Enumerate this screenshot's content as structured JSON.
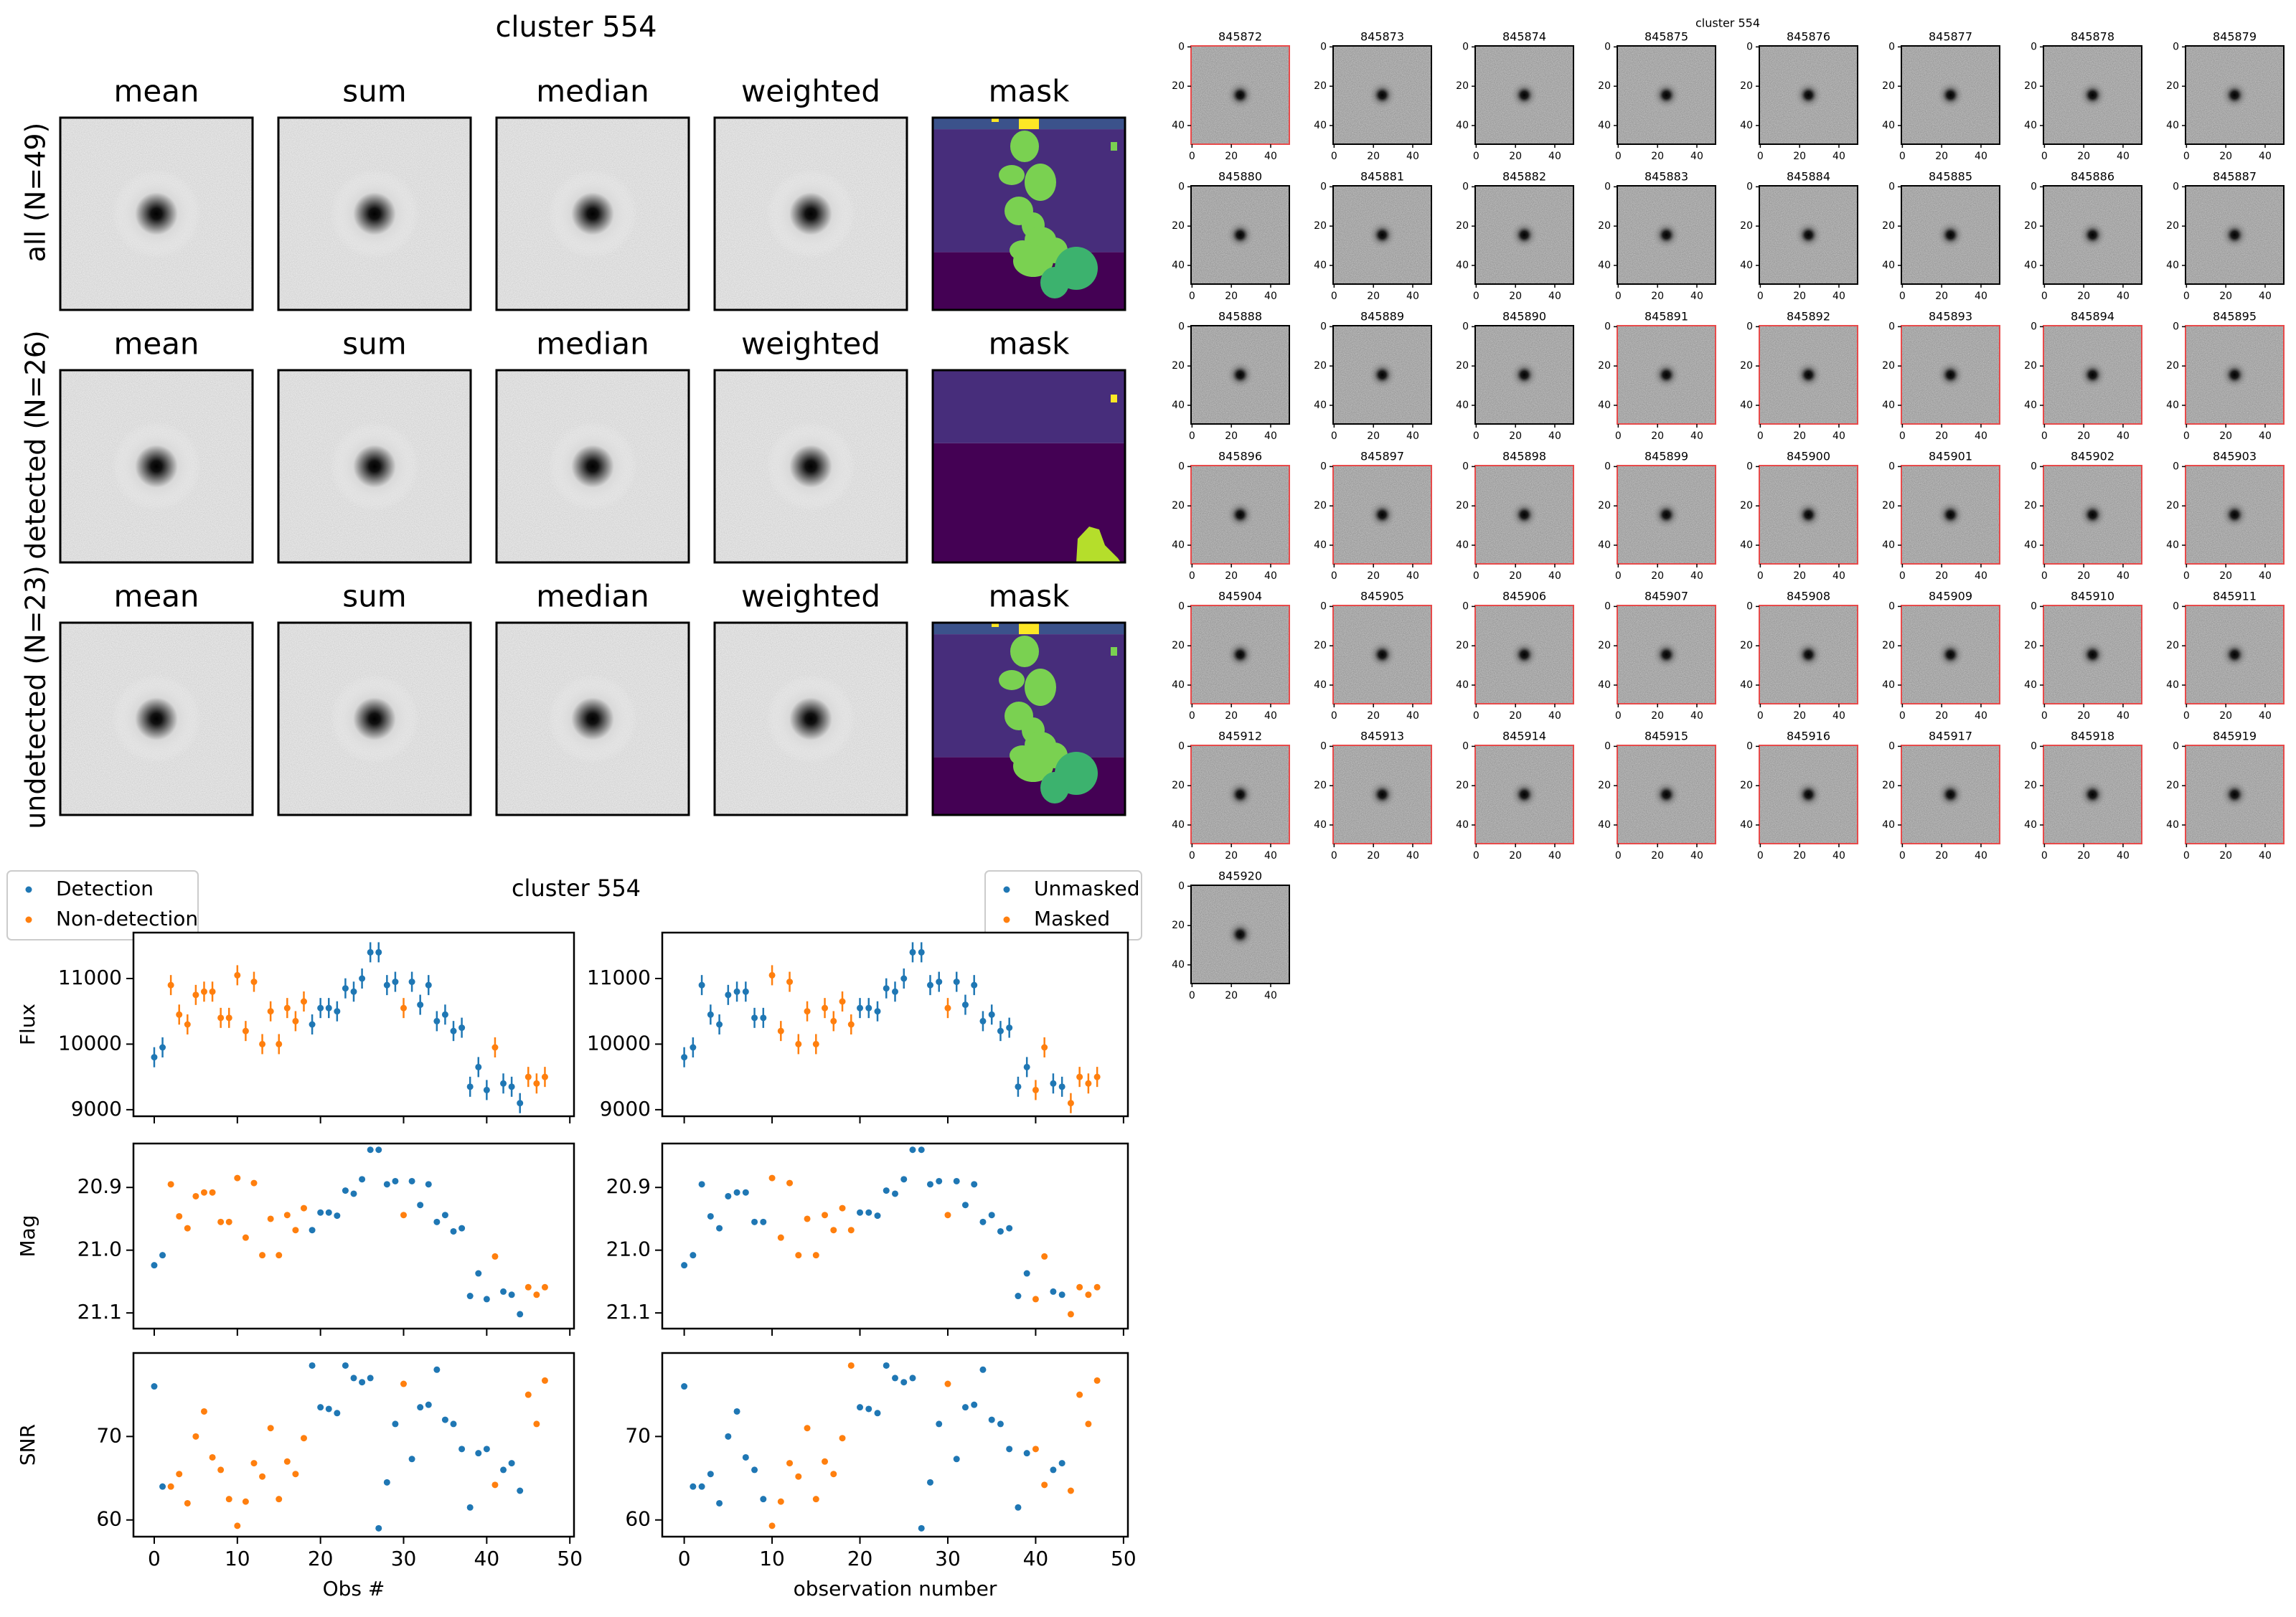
{
  "title": "cluster 554",
  "stack_panel": {
    "title": "cluster 554",
    "column_titles": [
      "mean",
      "sum",
      "median",
      "weighted",
      "mask"
    ],
    "row_labels": [
      "all (N=49)",
      "detected (N=26)",
      "undetected (N=23)"
    ],
    "mask_colors": {
      "dark": "#440154",
      "mid": "#472d7b",
      "blue": "#3b528b",
      "green": "#7ad151",
      "teal": "#3cb26e",
      "yellow": "#fde725",
      "lime": "#b5de2b"
    }
  },
  "lightcurve_panel": {
    "title": "cluster 554",
    "legend_left": [
      "Detection",
      "Non-detection"
    ],
    "legend_right": [
      "Unmasked",
      "Masked"
    ],
    "xlabel_left": "Obs #",
    "xlabel_right": "observation number",
    "xticks": [
      "0",
      "10",
      "20",
      "30",
      "40",
      "50"
    ],
    "flux_ylabel": "Flux",
    "flux_yticks": [
      "9000",
      "10000",
      "11000"
    ],
    "mag_ylabel": "Mag",
    "mag_yticks": [
      "20.9",
      "21.0",
      "21.1"
    ],
    "snr_ylabel": "SNR",
    "snr_yticks": [
      "60",
      "70"
    ],
    "colors": {
      "blue": "#1f77b4",
      "orange": "#ff7f0e"
    }
  },
  "cutout_panel": {
    "title": "cluster 554",
    "ids": [
      "845872",
      "845873",
      "845874",
      "845875",
      "845876",
      "845877",
      "845878",
      "845879",
      "845880",
      "845881",
      "845882",
      "845883",
      "845884",
      "845885",
      "845886",
      "845887",
      "845888",
      "845889",
      "845890",
      "845891",
      "845892",
      "845893",
      "845894",
      "845895",
      "845896",
      "845897",
      "845898",
      "845899",
      "845900",
      "845901",
      "845902",
      "845903",
      "845904",
      "845905",
      "845906",
      "845907",
      "845908",
      "845909",
      "845910",
      "845911",
      "845912",
      "845913",
      "845914",
      "845915",
      "845916",
      "845917",
      "845918",
      "845919",
      "845920"
    ],
    "xticks": [
      "0",
      "20",
      "40"
    ],
    "yticks": [
      "0",
      "20",
      "40"
    ],
    "red_border_indices": [
      0,
      19,
      20,
      21,
      22,
      23,
      24,
      25,
      26,
      27,
      28,
      29,
      30,
      31,
      32,
      33,
      34,
      35,
      36,
      37,
      38,
      39,
      40,
      41,
      42,
      43,
      44,
      45,
      46,
      47
    ]
  },
  "chart_data": [
    {
      "type": "scatter",
      "title": "cluster 554",
      "xlabel": "",
      "ylabel": "Flux",
      "x": [
        0,
        1,
        2,
        3,
        4,
        5,
        6,
        7,
        8,
        9,
        10,
        11,
        12,
        13,
        14,
        15,
        16,
        17,
        18,
        19,
        20,
        21,
        22,
        23,
        24,
        25,
        26,
        27,
        28,
        29,
        30,
        31,
        32,
        33,
        34,
        35,
        36,
        37,
        38,
        39,
        40,
        41,
        42,
        43,
        44,
        45,
        46,
        47,
        48
      ],
      "series": [
        {
          "name": "Detection",
          "values": [
            9800,
            9950,
            null,
            null,
            null,
            null,
            null,
            null,
            null,
            null,
            null,
            null,
            null,
            null,
            null,
            null,
            null,
            null,
            null,
            10300,
            10550,
            10550,
            10500,
            10850,
            10800,
            11000,
            11400,
            11400,
            10900,
            10950,
            null,
            10950,
            10600,
            10900,
            10350,
            10450,
            10200,
            10250,
            9350,
            9650,
            9300,
            null,
            9400,
            9350,
            9100,
            null,
            null,
            null,
            null
          ]
        },
        {
          "name": "Non-detection",
          "values": [
            null,
            null,
            10900,
            10450,
            10300,
            10750,
            10800,
            10800,
            10400,
            10400,
            11050,
            10200,
            10950,
            10000,
            10500,
            10000,
            10550,
            10350,
            10650,
            null,
            null,
            null,
            null,
            null,
            null,
            null,
            null,
            null,
            null,
            null,
            10550,
            null,
            null,
            null,
            null,
            null,
            null,
            null,
            null,
            null,
            null,
            9950,
            null,
            null,
            null,
            9500,
            9400,
            9500,
            null
          ]
        }
      ],
      "ylim": [
        8900,
        11700
      ]
    },
    {
      "type": "scatter",
      "xlabel": "",
      "ylabel": "Flux",
      "x": [
        0,
        1,
        2,
        3,
        4,
        5,
        6,
        7,
        8,
        9,
        10,
        11,
        12,
        13,
        14,
        15,
        16,
        17,
        18,
        19,
        20,
        21,
        22,
        23,
        24,
        25,
        26,
        27,
        28,
        29,
        30,
        31,
        32,
        33,
        34,
        35,
        36,
        37,
        38,
        39,
        40,
        41,
        42,
        43,
        44,
        45,
        46,
        47,
        48
      ],
      "series": [
        {
          "name": "Unmasked",
          "values": [
            9800,
            9950,
            10900,
            10450,
            10300,
            10750,
            10800,
            10800,
            10400,
            10400,
            null,
            null,
            null,
            null,
            null,
            null,
            null,
            null,
            null,
            null,
            10550,
            10550,
            10500,
            10850,
            10800,
            11000,
            11400,
            11400,
            10900,
            10950,
            null,
            10950,
            10600,
            10900,
            10350,
            10450,
            10200,
            10250,
            9350,
            9650,
            null,
            null,
            9400,
            9350,
            null,
            null,
            null,
            null,
            null
          ]
        },
        {
          "name": "Masked",
          "values": [
            null,
            null,
            null,
            null,
            null,
            null,
            null,
            null,
            null,
            null,
            11050,
            10200,
            10950,
            10000,
            10500,
            10000,
            10550,
            10350,
            10650,
            10300,
            null,
            null,
            null,
            null,
            null,
            null,
            null,
            null,
            null,
            null,
            10550,
            null,
            null,
            null,
            null,
            null,
            null,
            null,
            null,
            null,
            9300,
            9950,
            null,
            null,
            9100,
            9500,
            9400,
            9500,
            null
          ]
        }
      ],
      "ylim": [
        8900,
        11700
      ]
    },
    {
      "type": "scatter",
      "xlabel": "",
      "ylabel": "Mag",
      "x": [
        0,
        1,
        2,
        3,
        4,
        5,
        6,
        7,
        8,
        9,
        10,
        11,
        12,
        13,
        14,
        15,
        16,
        17,
        18,
        19,
        20,
        21,
        22,
        23,
        24,
        25,
        26,
        27,
        28,
        29,
        30,
        31,
        32,
        33,
        34,
        35,
        36,
        37,
        38,
        39,
        40,
        41,
        42,
        43,
        44,
        45,
        46,
        47,
        48
      ],
      "series": [
        {
          "name": "Detection",
          "values": [
            21.024,
            21.008,
            null,
            null,
            null,
            null,
            null,
            null,
            null,
            null,
            null,
            null,
            null,
            null,
            null,
            null,
            null,
            null,
            null,
            20.968,
            20.94,
            20.94,
            20.945,
            20.905,
            20.91,
            20.887,
            20.84,
            20.84,
            20.895,
            20.89,
            null,
            20.89,
            20.928,
            20.895,
            20.955,
            20.944,
            20.97,
            20.965,
            21.073,
            21.037,
            21.078,
            null,
            21.066,
            21.071,
            21.102,
            null,
            null,
            null,
            null
          ]
        },
        {
          "name": "Non-detection",
          "values": [
            null,
            null,
            20.895,
            20.946,
            20.965,
            20.914,
            20.908,
            20.908,
            20.955,
            20.955,
            20.885,
            20.98,
            20.893,
            21.008,
            20.95,
            21.008,
            20.944,
            20.968,
            20.933,
            null,
            null,
            null,
            null,
            null,
            null,
            null,
            null,
            null,
            null,
            null,
            20.944,
            null,
            null,
            null,
            null,
            null,
            null,
            null,
            null,
            null,
            null,
            21.01,
            null,
            null,
            null,
            21.059,
            21.071,
            21.059,
            null
          ]
        }
      ],
      "ylim": [
        21.125,
        20.83
      ]
    },
    {
      "type": "scatter",
      "xlabel": "",
      "ylabel": "Mag",
      "x": [
        0,
        1,
        2,
        3,
        4,
        5,
        6,
        7,
        8,
        9,
        10,
        11,
        12,
        13,
        14,
        15,
        16,
        17,
        18,
        19,
        20,
        21,
        22,
        23,
        24,
        25,
        26,
        27,
        28,
        29,
        30,
        31,
        32,
        33,
        34,
        35,
        36,
        37,
        38,
        39,
        40,
        41,
        42,
        43,
        44,
        45,
        46,
        47,
        48
      ],
      "series": [
        {
          "name": "Unmasked",
          "values": [
            21.024,
            21.008,
            20.895,
            20.946,
            20.965,
            20.914,
            20.908,
            20.908,
            20.955,
            20.955,
            null,
            null,
            null,
            null,
            null,
            null,
            null,
            null,
            null,
            null,
            20.94,
            20.94,
            20.945,
            20.905,
            20.91,
            20.887,
            20.84,
            20.84,
            20.895,
            20.89,
            null,
            20.89,
            20.928,
            20.895,
            20.955,
            20.944,
            20.97,
            20.965,
            21.073,
            21.037,
            null,
            null,
            21.066,
            21.071,
            null,
            null,
            null,
            null,
            null
          ]
        },
        {
          "name": "Masked",
          "values": [
            null,
            null,
            null,
            null,
            null,
            null,
            null,
            null,
            null,
            null,
            20.885,
            20.98,
            20.893,
            21.008,
            20.95,
            21.008,
            20.944,
            20.968,
            20.933,
            20.968,
            null,
            null,
            null,
            null,
            null,
            null,
            null,
            null,
            null,
            null,
            20.944,
            null,
            null,
            null,
            null,
            null,
            null,
            null,
            null,
            null,
            21.078,
            21.01,
            null,
            null,
            21.102,
            21.059,
            21.071,
            21.059,
            null
          ]
        }
      ],
      "ylim": [
        21.125,
        20.83
      ]
    },
    {
      "type": "scatter",
      "xlabel": "Obs #",
      "ylabel": "SNR",
      "x": [
        0,
        1,
        2,
        3,
        4,
        5,
        6,
        7,
        8,
        9,
        10,
        11,
        12,
        13,
        14,
        15,
        16,
        17,
        18,
        19,
        20,
        21,
        22,
        23,
        24,
        25,
        26,
        27,
        28,
        29,
        30,
        31,
        32,
        33,
        34,
        35,
        36,
        37,
        38,
        39,
        40,
        41,
        42,
        43,
        44,
        45,
        46,
        47,
        48
      ],
      "series": [
        {
          "name": "Detection",
          "values": [
            76,
            64,
            null,
            null,
            null,
            null,
            null,
            null,
            null,
            null,
            null,
            null,
            null,
            null,
            null,
            null,
            null,
            null,
            null,
            78.5,
            73.5,
            73.3,
            72.8,
            78.5,
            77,
            76.5,
            77,
            59,
            64.5,
            71.5,
            null,
            67.3,
            73.5,
            73.8,
            78,
            72,
            71.5,
            68.5,
            61.5,
            68,
            68.5,
            null,
            66,
            66.8,
            63.5,
            null,
            null,
            null,
            null
          ]
        },
        {
          "name": "Non-detection",
          "values": [
            null,
            null,
            64,
            65.5,
            62,
            70,
            73,
            67.5,
            66,
            62.5,
            59.3,
            62.2,
            66.8,
            65.2,
            71,
            62.5,
            67,
            65.5,
            69.8,
            null,
            null,
            null,
            null,
            null,
            null,
            null,
            null,
            null,
            null,
            null,
            76.3,
            null,
            null,
            null,
            null,
            null,
            null,
            null,
            null,
            null,
            null,
            64.2,
            null,
            null,
            null,
            75,
            71.5,
            76.7,
            null
          ]
        }
      ],
      "ylim": [
        58,
        80
      ]
    },
    {
      "type": "scatter",
      "xlabel": "observation number",
      "ylabel": "SNR",
      "x": [
        0,
        1,
        2,
        3,
        4,
        5,
        6,
        7,
        8,
        9,
        10,
        11,
        12,
        13,
        14,
        15,
        16,
        17,
        18,
        19,
        20,
        21,
        22,
        23,
        24,
        25,
        26,
        27,
        28,
        29,
        30,
        31,
        32,
        33,
        34,
        35,
        36,
        37,
        38,
        39,
        40,
        41,
        42,
        43,
        44,
        45,
        46,
        47,
        48
      ],
      "series": [
        {
          "name": "Unmasked",
          "values": [
            76,
            64,
            64,
            65.5,
            62,
            70,
            73,
            67.5,
            66,
            62.5,
            null,
            null,
            null,
            null,
            null,
            null,
            null,
            null,
            null,
            null,
            73.5,
            73.3,
            72.8,
            78.5,
            77,
            76.5,
            77,
            59,
            64.5,
            71.5,
            null,
            67.3,
            73.5,
            73.8,
            78,
            72,
            71.5,
            68.5,
            61.5,
            68,
            null,
            null,
            66,
            66.8,
            null,
            null,
            null,
            null,
            null
          ]
        },
        {
          "name": "Masked",
          "values": [
            null,
            null,
            null,
            null,
            null,
            null,
            null,
            null,
            null,
            null,
            59.3,
            62.2,
            66.8,
            65.2,
            71,
            62.5,
            67,
            65.5,
            69.8,
            78.5,
            null,
            null,
            null,
            null,
            null,
            null,
            null,
            null,
            null,
            null,
            76.3,
            null,
            null,
            null,
            null,
            null,
            null,
            null,
            null,
            null,
            68.5,
            64.2,
            null,
            null,
            63.5,
            75,
            71.5,
            76.7,
            null
          ]
        }
      ],
      "ylim": [
        58,
        80
      ]
    }
  ]
}
